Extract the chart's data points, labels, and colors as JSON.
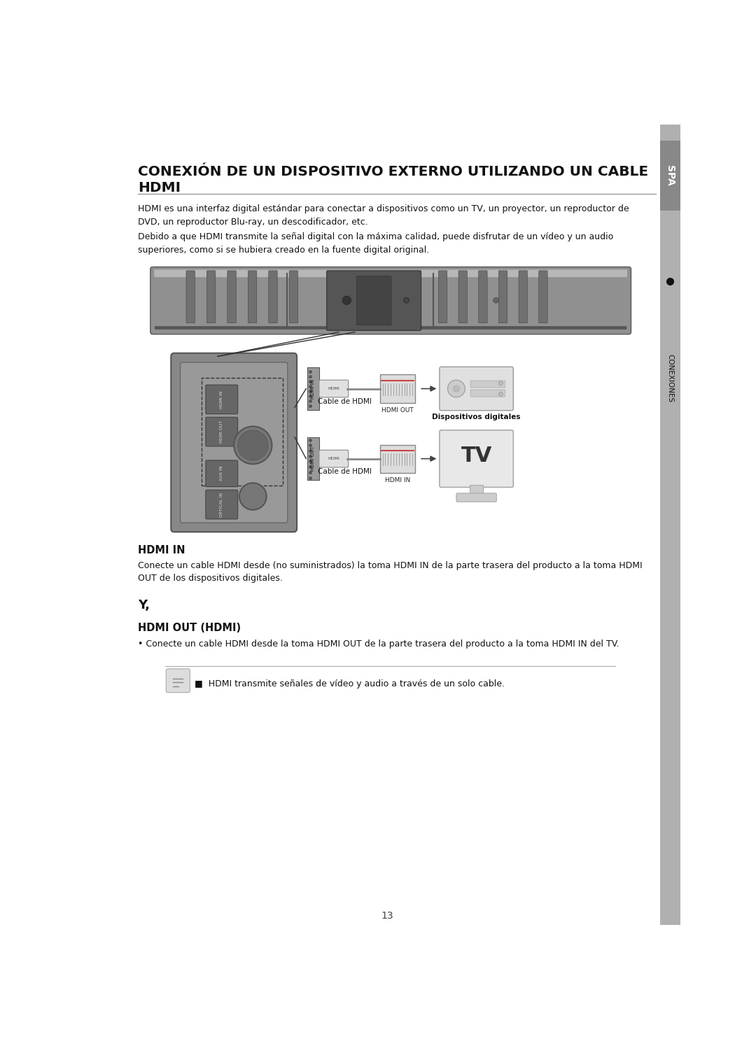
{
  "title_line1": "CONEXIÓN DE UN DISPOSITIVO EXTERNO UTILIZANDO UN CABLE",
  "title_line2": "HDMI",
  "bg_color": "#ffffff",
  "sidebar_color": "#9a9a9a",
  "sidebar_label": "SPA",
  "sidebar_label2": "CONEXIONES",
  "para1": "HDMI es una interfaz digital estándar para conectar a dispositivos como un TV, un proyector, un reproductor de\nDVD, un reproductor Blu-ray, un descodificador, etc.",
  "para2": "Debido a que HDMI transmite la señal digital con la máxima calidad, puede disfrutar de un vídeo y un audio\nsuperiores, como si se hubiera creado en la fuente digital original.",
  "hdmi_in_title": "HDMI IN",
  "hdmi_in_text": "Conecte un cable HDMI desde (no suministrados) la toma HDMI IN de la parte trasera del producto a la toma HDMI\nOUT de los dispositivos digitales.",
  "y_label": "Y,",
  "hdmi_out_title": "HDMI OUT (HDMI)",
  "hdmi_out_bullet": "• Conecte un cable HDMI desde la toma HDMI OUT de la parte trasera del producto a la toma HDMI IN del TV.",
  "note_text": "■  HDMI transmite señales de vídeo y audio a través de un solo cable.",
  "page_num": "13"
}
